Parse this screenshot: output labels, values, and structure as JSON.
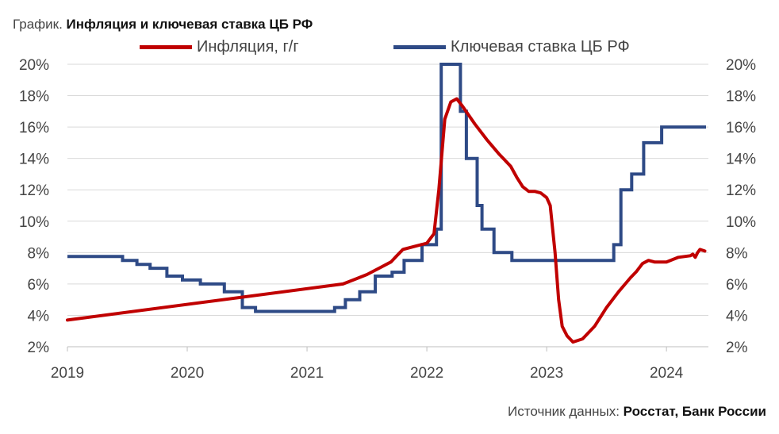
{
  "title": {
    "prefix": "График.",
    "main": "Инфляция и ключевая ставка ЦБ РФ"
  },
  "source": {
    "prefix": "Источник данных:",
    "main": "Росстат, Банк России"
  },
  "colors": {
    "inflation": "#c00000",
    "key_rate": "#2e4a86",
    "grid": "#d9d9d9",
    "axis_text": "#444444"
  },
  "chart_data": {
    "type": "line",
    "title": "Инфляция и ключевая ставка ЦБ РФ",
    "xlim": [
      2019,
      2024.35
    ],
    "ylim": [
      2,
      20
    ],
    "x_ticks": [
      2019,
      2020,
      2021,
      2022,
      2023,
      2024
    ],
    "x_tick_labels": [
      "2019",
      "2020",
      "2021",
      "2022",
      "2023",
      "2024"
    ],
    "y_ticks": [
      2,
      4,
      6,
      8,
      10,
      12,
      14,
      16,
      18,
      20
    ],
    "y_tick_labels_left": [
      "2%",
      "4%",
      "6%",
      "8%",
      "10%",
      "12%",
      "14%",
      "16%",
      "18%",
      "20%"
    ],
    "y_tick_labels_right": [
      "2%",
      "4%",
      "6%",
      "8%",
      "10%",
      "12%",
      "14%",
      "16%",
      "18%",
      "20%"
    ],
    "grid": true,
    "legend_position": "top",
    "series": [
      {
        "name": "Инфляция, г/г",
        "style": "line",
        "points": [
          [
            2019.0,
            3.7
          ],
          [
            2021.3,
            6.0
          ],
          [
            2021.4,
            6.3
          ],
          [
            2021.5,
            6.6
          ],
          [
            2021.6,
            7.0
          ],
          [
            2021.7,
            7.4
          ],
          [
            2021.75,
            7.8
          ],
          [
            2021.8,
            8.2
          ],
          [
            2021.9,
            8.4
          ],
          [
            2022.0,
            8.6
          ],
          [
            2022.06,
            9.2
          ],
          [
            2022.1,
            12.0
          ],
          [
            2022.15,
            16.5
          ],
          [
            2022.2,
            17.6
          ],
          [
            2022.25,
            17.8
          ],
          [
            2022.3,
            17.3
          ],
          [
            2022.4,
            16.2
          ],
          [
            2022.5,
            15.2
          ],
          [
            2022.6,
            14.3
          ],
          [
            2022.7,
            13.5
          ],
          [
            2022.75,
            12.8
          ],
          [
            2022.8,
            12.2
          ],
          [
            2022.85,
            11.9
          ],
          [
            2022.9,
            11.9
          ],
          [
            2022.95,
            11.8
          ],
          [
            2023.0,
            11.5
          ],
          [
            2023.03,
            11.0
          ],
          [
            2023.07,
            8.0
          ],
          [
            2023.1,
            5.0
          ],
          [
            2023.13,
            3.3
          ],
          [
            2023.17,
            2.7
          ],
          [
            2023.22,
            2.3
          ],
          [
            2023.3,
            2.5
          ],
          [
            2023.4,
            3.3
          ],
          [
            2023.5,
            4.5
          ],
          [
            2023.6,
            5.5
          ],
          [
            2023.7,
            6.4
          ],
          [
            2023.75,
            6.8
          ],
          [
            2023.8,
            7.3
          ],
          [
            2023.85,
            7.5
          ],
          [
            2023.9,
            7.4
          ],
          [
            2024.0,
            7.4
          ],
          [
            2024.1,
            7.7
          ],
          [
            2024.2,
            7.8
          ],
          [
            2024.22,
            7.9
          ],
          [
            2024.24,
            7.7
          ],
          [
            2024.26,
            8.0
          ],
          [
            2024.28,
            8.2
          ],
          [
            2024.32,
            8.1
          ]
        ]
      },
      {
        "name": "Ключевая ставка ЦБ РФ",
        "style": "step",
        "points": [
          [
            2019.0,
            7.75
          ],
          [
            2019.46,
            7.5
          ],
          [
            2019.58,
            7.25
          ],
          [
            2019.69,
            7.0
          ],
          [
            2019.83,
            6.5
          ],
          [
            2019.96,
            6.25
          ],
          [
            2020.11,
            6.0
          ],
          [
            2020.31,
            5.5
          ],
          [
            2020.46,
            4.5
          ],
          [
            2020.57,
            4.25
          ],
          [
            2021.23,
            4.5
          ],
          [
            2021.32,
            5.0
          ],
          [
            2021.44,
            5.5
          ],
          [
            2021.57,
            6.5
          ],
          [
            2021.71,
            6.75
          ],
          [
            2021.81,
            7.5
          ],
          [
            2021.96,
            8.5
          ],
          [
            2022.08,
            9.5
          ],
          [
            2022.12,
            20.0
          ],
          [
            2022.28,
            17.0
          ],
          [
            2022.33,
            14.0
          ],
          [
            2022.42,
            11.0
          ],
          [
            2022.46,
            9.5
          ],
          [
            2022.56,
            8.0
          ],
          [
            2022.71,
            7.5
          ],
          [
            2023.56,
            8.5
          ],
          [
            2023.62,
            12.0
          ],
          [
            2023.71,
            13.0
          ],
          [
            2023.81,
            15.0
          ],
          [
            2023.96,
            16.0
          ],
          [
            2024.33,
            16.0
          ]
        ]
      }
    ]
  }
}
